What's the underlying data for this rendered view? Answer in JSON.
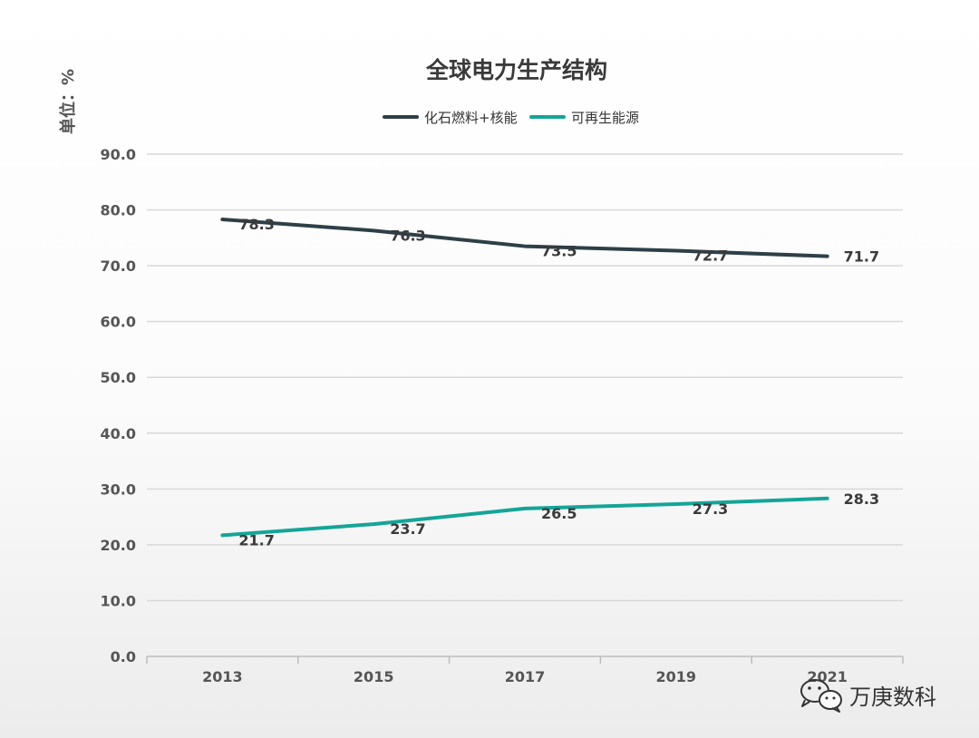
{
  "chart_data": {
    "type": "line",
    "title": "全球电力生产结构",
    "unit_label": "单位：%",
    "categories": [
      "2013",
      "2015",
      "2017",
      "2019",
      "2021"
    ],
    "series": [
      {
        "name": "化石燃料+核能",
        "color": "#2e3f47",
        "values": [
          78.3,
          76.3,
          73.5,
          72.7,
          71.7
        ],
        "labels": [
          "78.3",
          "76.3",
          "73.5",
          "72.7",
          "71.7"
        ]
      },
      {
        "name": "可再生能源",
        "color": "#14a597",
        "values": [
          21.7,
          23.7,
          26.5,
          27.3,
          28.3
        ],
        "labels": [
          "21.7",
          "23.7",
          "26.5",
          "27.3",
          "28.3"
        ]
      }
    ],
    "y_ticks": [
      "0.0",
      "10.0",
      "20.0",
      "30.0",
      "40.0",
      "50.0",
      "60.0",
      "70.0",
      "80.0",
      "90.0"
    ],
    "ylim": [
      0,
      90
    ],
    "legend_position": "top-center",
    "grid": true
  },
  "watermark": {
    "text": "万庚数科",
    "icon": "wechat-icon"
  }
}
